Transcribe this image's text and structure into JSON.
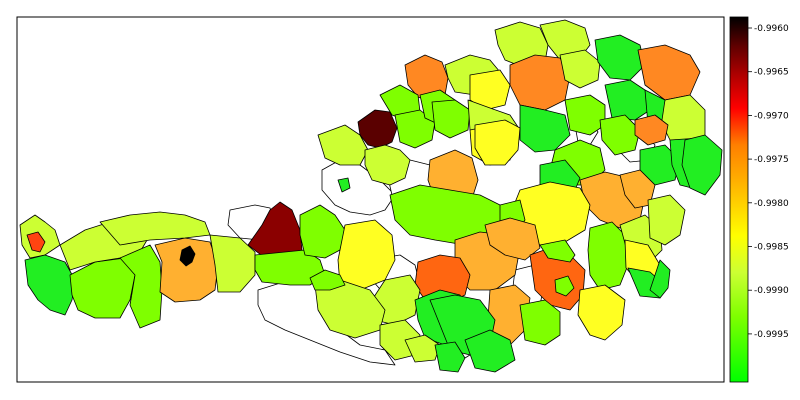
{
  "colorbar": {
    "ticks": [
      "-0.9960",
      "-0.9965",
      "-0.9970",
      "-0.9975",
      "-0.9980",
      "-0.9985",
      "-0.9990",
      "-0.9995"
    ],
    "min": -0.99995,
    "max": -0.99582,
    "palette": [
      "#00ff00",
      "#7fff00",
      "#ccff33",
      "#ffff00",
      "#ffb000",
      "#ff7f00",
      "#ff0000",
      "#b00000",
      "#600000",
      "#000000"
    ]
  },
  "region_fill_colors": {
    "white": "#ffffff",
    "bright-green": "#22ee22",
    "lime": "#7fff00",
    "yellow-green": "#ccff33",
    "yellow": "#ffff22",
    "light-orange": "#ffb030",
    "orange": "#ff8822",
    "dark-orange": "#ff6611",
    "red-orange": "#ff4411",
    "dark-red": "#8b0000",
    "dark-maroon": "#5a0000",
    "black": "#000000"
  }
}
